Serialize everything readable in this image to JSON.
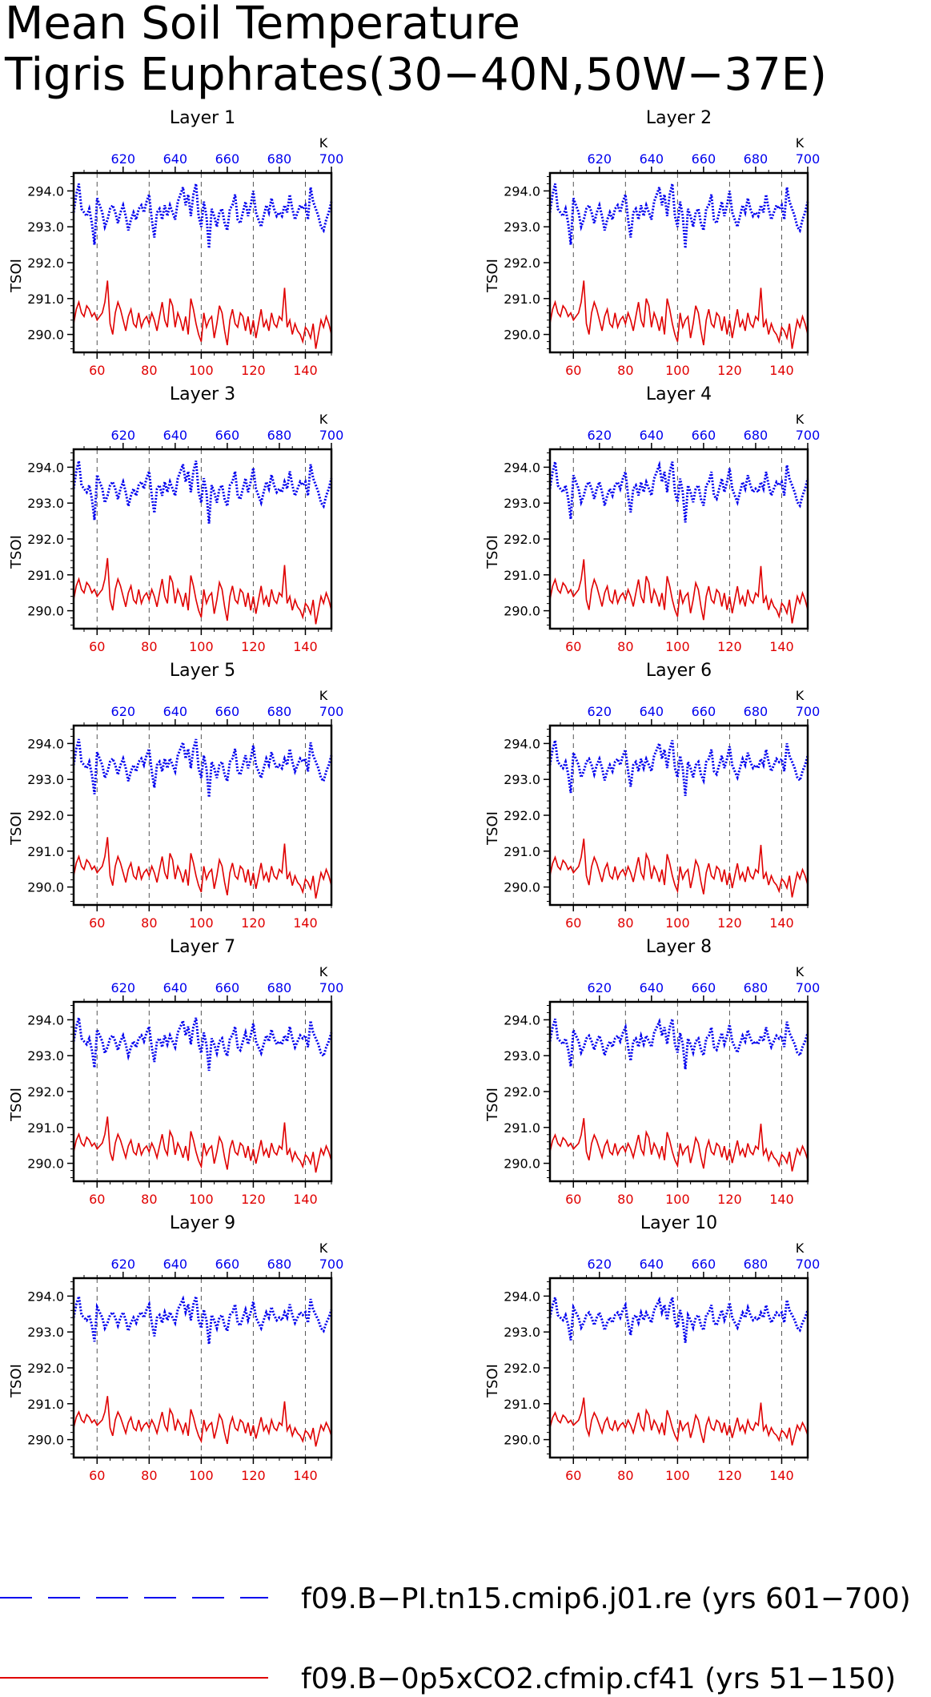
{
  "title": {
    "line1": "Mean Soil Temperature",
    "line2": "Tigris Euphrates(30−40N,50W−37E)"
  },
  "colors": {
    "series_a": "#0000ee",
    "series_b": "#e00000",
    "axis": "#000000",
    "gridline": "#555555"
  },
  "legend": {
    "position": "bottom",
    "items": [
      {
        "label": "f09.B−PI.tn15.cmip6.j01.re (yrs 601−700)",
        "color": "#0000ee",
        "style": "dashed"
      },
      {
        "label": "f09.B−0p5xCO2.cfmip.cf41 (yrs 51−150)",
        "color": "#e00000",
        "style": "solid"
      }
    ]
  },
  "chart_data": {
    "type": "line",
    "panel_titles": [
      "Layer 1",
      "Layer 2",
      "Layer 3",
      "Layer 4",
      "Layer 5",
      "Layer 6",
      "Layer 7",
      "Layer 8",
      "Layer 9",
      "Layer 10"
    ],
    "ylabel": "TSOI",
    "top_axis_unit": "K",
    "x_bottom": {
      "range": [
        51,
        150
      ],
      "ticks": [
        60,
        80,
        100,
        120,
        140
      ]
    },
    "x_top": {
      "range": [
        601,
        700
      ],
      "ticks": [
        620,
        640,
        660,
        680,
        700
      ]
    },
    "y": {
      "range": [
        289.5,
        294.5
      ],
      "ticks": [
        290.0,
        291.0,
        292.0,
        293.0,
        294.0
      ],
      "tick_labels": [
        "290.0",
        "291.0",
        "292.0",
        "293.0",
        "294.0"
      ]
    },
    "grid": "dashed vertical lines at bottom-axis ticks",
    "series_a_base": [
      293.4,
      293.9,
      294.2,
      293.5,
      293.4,
      293.3,
      293.5,
      293.1,
      292.5,
      293.8,
      293.6,
      293.4,
      293.0,
      293.2,
      293.5,
      293.6,
      293.4,
      293.1,
      293.4,
      293.6,
      293.3,
      292.9,
      293.2,
      293.4,
      293.2,
      293.5,
      293.6,
      293.4,
      293.7,
      293.9,
      293.2,
      292.7,
      293.4,
      293.5,
      293.2,
      293.6,
      293.3,
      293.6,
      293.4,
      293.2,
      293.7,
      293.9,
      294.1,
      293.6,
      293.9,
      293.3,
      293.9,
      294.2,
      293.3,
      293.0,
      293.7,
      293.3,
      292.4,
      293.5,
      293.3,
      293.0,
      293.4,
      293.5,
      293.1,
      292.9,
      293.5,
      293.6,
      293.9,
      293.2,
      293.1,
      293.4,
      293.7,
      293.3,
      293.6,
      294.0,
      293.4,
      293.2,
      293.0,
      293.3,
      293.6,
      293.4,
      293.8,
      293.5,
      293.3,
      293.4,
      293.3,
      293.6,
      293.4,
      293.9,
      293.5,
      293.2,
      293.4,
      293.6,
      293.5,
      293.6,
      293.2,
      294.1,
      293.7,
      293.5,
      293.3,
      293.0,
      292.9,
      293.2,
      293.4,
      293.7
    ],
    "series_b_base": [
      290.3,
      290.7,
      290.9,
      290.6,
      290.5,
      290.8,
      290.7,
      290.5,
      290.6,
      290.4,
      290.5,
      290.6,
      290.9,
      291.5,
      290.3,
      290.0,
      290.6,
      290.9,
      290.7,
      290.4,
      290.1,
      290.5,
      290.7,
      290.3,
      290.2,
      290.6,
      290.2,
      290.4,
      290.5,
      290.3,
      290.6,
      290.4,
      290.1,
      290.5,
      290.9,
      290.4,
      290.2,
      291.0,
      290.8,
      290.2,
      290.6,
      290.4,
      290.1,
      290.5,
      290.0,
      291.0,
      290.7,
      290.3,
      290.0,
      289.8,
      290.6,
      290.2,
      290.4,
      290.5,
      289.9,
      290.3,
      290.8,
      290.6,
      290.1,
      289.7,
      290.4,
      290.7,
      290.3,
      290.2,
      290.6,
      290.5,
      290.1,
      290.5,
      290.0,
      290.4,
      289.9,
      290.3,
      290.7,
      290.2,
      290.4,
      290.1,
      290.6,
      290.3,
      290.2,
      290.5,
      290.4,
      291.3,
      290.2,
      290.4,
      290.0,
      290.3,
      290.1,
      290.0,
      289.8,
      290.2,
      290.1,
      289.9,
      290.3,
      289.6,
      290.0,
      290.4,
      290.2,
      290.5,
      290.3,
      290.0
    ],
    "layer_amplitude": [
      1.0,
      1.0,
      0.97,
      0.94,
      0.9,
      0.86,
      0.82,
      0.78,
      0.74,
      0.7
    ]
  }
}
